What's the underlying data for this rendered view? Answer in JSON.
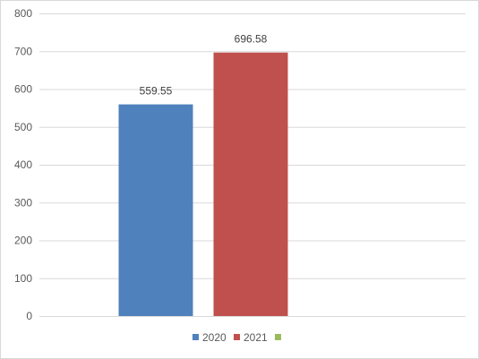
{
  "chart_data": {
    "type": "bar",
    "categories": [
      ""
    ],
    "series": [
      {
        "name": "2020",
        "color": "#4f81bd",
        "values": [
          559.55
        ],
        "data_label": "559.55"
      },
      {
        "name": "2021",
        "color": "#c0504d",
        "values": [
          696.58
        ],
        "data_label": "696.58"
      },
      {
        "name": "",
        "color": "#9bbb59",
        "values": [
          null
        ],
        "data_label": ""
      }
    ],
    "ylim": [
      0,
      800
    ],
    "yticks": [
      "0",
      "100",
      "200",
      "300",
      "400",
      "500",
      "600",
      "700",
      "800"
    ],
    "grid": true,
    "legend": "bottom",
    "title": "",
    "xlabel": "",
    "ylabel": ""
  }
}
